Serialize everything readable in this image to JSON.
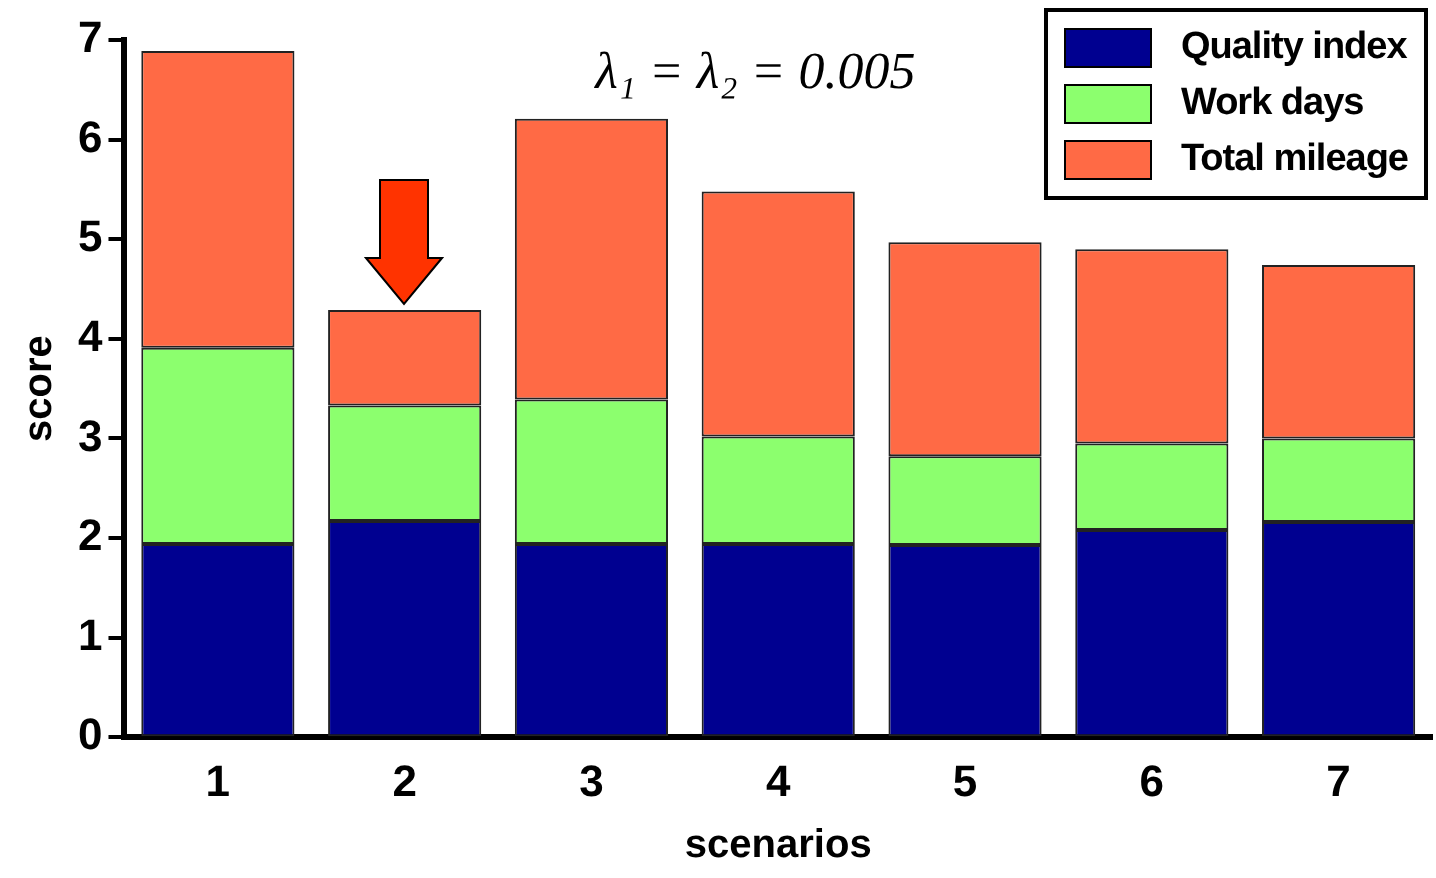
{
  "chart_data": {
    "type": "bar",
    "stacked": true,
    "xlabel": "scenarios",
    "ylabel": "score",
    "categories": [
      "1",
      "2",
      "3",
      "4",
      "5",
      "6",
      "7"
    ],
    "series": [
      {
        "name": "Quality index",
        "color": "#000090",
        "values": [
          1.94,
          2.17,
          1.94,
          1.94,
          1.93,
          2.08,
          2.16
        ]
      },
      {
        "name": "Work days",
        "color": "#8cff6e",
        "values": [
          1.97,
          1.16,
          1.45,
          1.08,
          0.89,
          0.87,
          0.84
        ]
      },
      {
        "name": "Total mileage",
        "color": "#ff6a45",
        "values": [
          2.98,
          0.96,
          2.82,
          2.46,
          2.15,
          1.95,
          1.74
        ]
      }
    ],
    "ylim": [
      0,
      7
    ],
    "yticks": [
      0,
      1,
      2,
      3,
      4,
      5,
      6,
      7
    ],
    "grid": false,
    "legend": "top right",
    "annotations": [
      "λ₁ = λ₂ = 0.005"
    ]
  }
}
